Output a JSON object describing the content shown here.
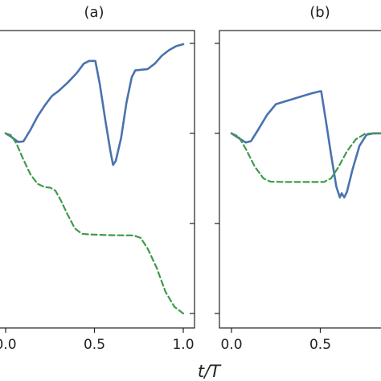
{
  "chart_data": [
    {
      "type": "line",
      "title": "(a)",
      "xlabel": "t/T",
      "xlim": [
        0.0,
        1.0
      ],
      "ylim": [
        0.0,
        1.0
      ],
      "xticks": [
        0.0,
        0.5,
        1.0
      ],
      "xtick_labels": [
        "0.0",
        "0.5",
        "1.0"
      ],
      "yticks": [
        0.0,
        0.333,
        0.667,
        1.0
      ],
      "grid": false,
      "series": [
        {
          "style": "solid",
          "color": "#4a72b0",
          "points": [
            [
              0.0,
              0.667
            ],
            [
              0.03,
              0.655
            ],
            [
              0.07,
              0.635
            ],
            [
              0.1,
              0.637
            ],
            [
              0.14,
              0.68
            ],
            [
              0.18,
              0.73
            ],
            [
              0.22,
              0.77
            ],
            [
              0.26,
              0.805
            ],
            [
              0.3,
              0.825
            ],
            [
              0.35,
              0.855
            ],
            [
              0.4,
              0.89
            ],
            [
              0.44,
              0.925
            ],
            [
              0.47,
              0.935
            ],
            [
              0.5,
              0.935
            ],
            [
              0.505,
              0.935
            ],
            [
              0.53,
              0.85
            ],
            [
              0.56,
              0.72
            ],
            [
              0.59,
              0.6
            ],
            [
              0.605,
              0.55
            ],
            [
              0.62,
              0.565
            ],
            [
              0.65,
              0.65
            ],
            [
              0.68,
              0.78
            ],
            [
              0.71,
              0.875
            ],
            [
              0.73,
              0.9
            ],
            [
              0.8,
              0.905
            ],
            [
              0.84,
              0.925
            ],
            [
              0.88,
              0.955
            ],
            [
              0.92,
              0.975
            ],
            [
              0.96,
              0.99
            ],
            [
              1.0,
              0.997
            ]
          ]
        },
        {
          "style": "dashed",
          "color": "#3f9a4a",
          "points": [
            [
              0.0,
              0.667
            ],
            [
              0.03,
              0.66
            ],
            [
              0.06,
              0.63
            ],
            [
              0.1,
              0.57
            ],
            [
              0.14,
              0.515
            ],
            [
              0.18,
              0.48
            ],
            [
              0.22,
              0.468
            ],
            [
              0.25,
              0.466
            ],
            [
              0.28,
              0.455
            ],
            [
              0.31,
              0.42
            ],
            [
              0.35,
              0.365
            ],
            [
              0.39,
              0.315
            ],
            [
              0.43,
              0.295
            ],
            [
              0.47,
              0.293
            ],
            [
              0.5,
              0.292
            ],
            [
              0.6,
              0.29
            ],
            [
              0.72,
              0.289
            ],
            [
              0.76,
              0.28
            ],
            [
              0.8,
              0.24
            ],
            [
              0.85,
              0.17
            ],
            [
              0.9,
              0.08
            ],
            [
              0.95,
              0.025
            ],
            [
              1.0,
              0.0
            ]
          ]
        }
      ]
    },
    {
      "type": "line",
      "title": "(b)",
      "xlabel": "t/T",
      "xlim": [
        0.0,
        1.0
      ],
      "ylim": [
        0.0,
        1.0
      ],
      "xticks": [
        0.0,
        0.5
      ],
      "xtick_labels": [
        "0.0",
        "0.5"
      ],
      "yticks": [
        0.0,
        0.333,
        0.667,
        1.0
      ],
      "grid": false,
      "series": [
        {
          "style": "solid",
          "color": "#4a72b0",
          "points": [
            [
              0.0,
              0.667
            ],
            [
              0.04,
              0.65
            ],
            [
              0.08,
              0.633
            ],
            [
              0.11,
              0.638
            ],
            [
              0.15,
              0.68
            ],
            [
              0.2,
              0.735
            ],
            [
              0.25,
              0.775
            ],
            [
              0.3,
              0.785
            ],
            [
              0.35,
              0.795
            ],
            [
              0.4,
              0.805
            ],
            [
              0.45,
              0.815
            ],
            [
              0.5,
              0.823
            ],
            [
              0.505,
              0.823
            ],
            [
              0.53,
              0.72
            ],
            [
              0.56,
              0.59
            ],
            [
              0.59,
              0.47
            ],
            [
              0.61,
              0.43
            ],
            [
              0.62,
              0.445
            ],
            [
              0.635,
              0.43
            ],
            [
              0.65,
              0.45
            ],
            [
              0.68,
              0.53
            ],
            [
              0.72,
              0.62
            ],
            [
              0.76,
              0.662
            ],
            [
              0.8,
              0.667
            ],
            [
              0.9,
              0.667
            ],
            [
              1.0,
              0.667
            ]
          ]
        },
        {
          "style": "dashed",
          "color": "#3f9a4a",
          "points": [
            [
              0.0,
              0.667
            ],
            [
              0.04,
              0.655
            ],
            [
              0.08,
              0.61
            ],
            [
              0.13,
              0.545
            ],
            [
              0.18,
              0.5
            ],
            [
              0.22,
              0.488
            ],
            [
              0.3,
              0.487
            ],
            [
              0.45,
              0.487
            ],
            [
              0.52,
              0.487
            ],
            [
              0.56,
              0.5
            ],
            [
              0.6,
              0.54
            ],
            [
              0.65,
              0.6
            ],
            [
              0.7,
              0.645
            ],
            [
              0.75,
              0.665
            ],
            [
              0.8,
              0.667
            ],
            [
              0.9,
              0.667
            ],
            [
              1.0,
              0.667
            ]
          ]
        }
      ]
    }
  ],
  "xlabel": "t/T"
}
